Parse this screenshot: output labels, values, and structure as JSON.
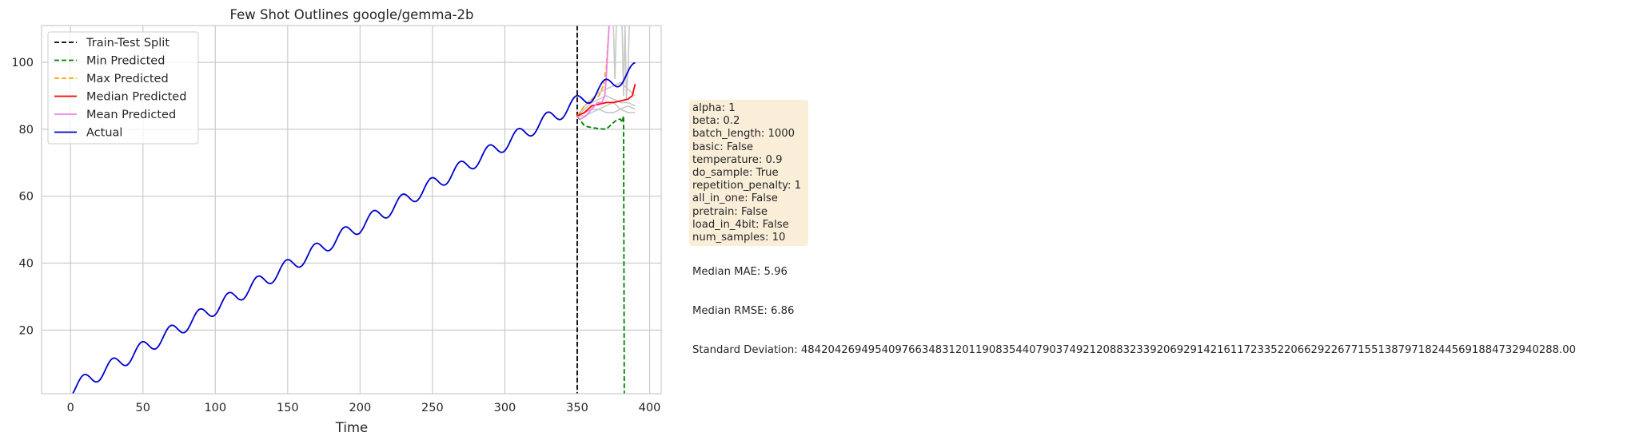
{
  "chart_data": {
    "type": "line",
    "title": "Few Shot Outlines google/gemma-2b",
    "xlabel": "Time",
    "ylabel": "",
    "xlim": [
      -20,
      408
    ],
    "ylim": [
      1,
      111
    ],
    "xticks": [
      0,
      50,
      100,
      150,
      200,
      250,
      300,
      350,
      400
    ],
    "yticks": [
      20,
      40,
      60,
      80,
      100
    ],
    "grid": true,
    "legend_position": "upper left",
    "train_test_split": 350,
    "series": [
      {
        "name": "Train-Test Split",
        "style": "dashed",
        "color": "#000000"
      },
      {
        "name": "Min Predicted",
        "style": "dashed",
        "color": "#008000",
        "x": [
          350,
          355,
          360,
          365,
          370,
          375,
          378,
          380,
          381,
          382,
          382.5
        ],
        "y": [
          84,
          81,
          80.5,
          80.2,
          80,
          82,
          83,
          83,
          82,
          84,
          1
        ]
      },
      {
        "name": "Max Predicted",
        "style": "dashed",
        "color": "#ffa500",
        "x": [
          350,
          355,
          360,
          365,
          368,
          370,
          372
        ],
        "y": [
          84,
          87,
          89,
          90,
          93,
          98,
          111
        ]
      },
      {
        "name": "Median Predicted",
        "style": "solid",
        "color": "#ff0000",
        "x": [
          350,
          355,
          360,
          365,
          370,
          375,
          380,
          385,
          388,
          390
        ],
        "y": [
          84,
          85,
          87,
          87.5,
          88,
          88,
          88.5,
          89,
          90,
          93.5
        ]
      },
      {
        "name": "Mean Predicted",
        "style": "solid",
        "color": "#ee82ee",
        "x": [
          350,
          352,
          356,
          360,
          364,
          367,
          369,
          370,
          371,
          372
        ],
        "y": [
          84,
          83,
          84,
          86,
          88,
          88,
          90,
          95,
          103,
          111
        ]
      },
      {
        "name": "Actual",
        "style": "solid",
        "color": "#0000cd",
        "equation": "y = 0.245*x + 2.2 + 2.2*sin(2*pi*(x-4)/20)",
        "x_range": [
          0,
          390
        ]
      }
    ],
    "sample_predictions": [
      {
        "x": [
          350,
          355,
          360,
          365,
          370,
          375,
          380,
          385,
          390
        ],
        "y": [
          84,
          86,
          88,
          89,
          90,
          89,
          88,
          88,
          87
        ]
      },
      {
        "x": [
          350,
          355,
          360,
          365,
          370,
          375,
          380,
          385,
          390
        ],
        "y": [
          84,
          85,
          86,
          86,
          85,
          85,
          86,
          87,
          86
        ]
      },
      {
        "x": [
          350,
          355,
          360,
          365,
          370,
          375,
          380,
          385,
          390
        ],
        "y": [
          84,
          87,
          89,
          91,
          92,
          93,
          94,
          92,
          90
        ]
      },
      {
        "x": [
          350,
          355,
          360,
          365,
          370,
          375,
          380,
          385,
          390
        ],
        "y": [
          84,
          84,
          85,
          86,
          87,
          88,
          86,
          85,
          85
        ]
      },
      {
        "x": [
          375,
          376,
          377
        ],
        "y": [
          111,
          95,
          111
        ]
      },
      {
        "x": [
          381,
          382,
          383
        ],
        "y": [
          111,
          90,
          111
        ]
      },
      {
        "x": [
          383,
          384,
          385,
          386
        ],
        "y": [
          111,
          89,
          97,
          111
        ]
      }
    ]
  },
  "legend": [
    {
      "label": "Train-Test Split",
      "color": "#000000",
      "dashed": true
    },
    {
      "label": "Min Predicted",
      "color": "#008000",
      "dashed": true
    },
    {
      "label": "Max Predicted",
      "color": "#ffa500",
      "dashed": true
    },
    {
      "label": "Median Predicted",
      "color": "#ff0000",
      "dashed": false
    },
    {
      "label": "Mean Predicted",
      "color": "#ee82ee",
      "dashed": false
    },
    {
      "label": "Actual",
      "color": "#0000cd",
      "dashed": false
    }
  ],
  "info_box": {
    "lines": [
      "alpha: 1",
      "beta: 0.2",
      "batch_length: 1000",
      "basic: False",
      "temperature: 0.9",
      "do_sample: True",
      "repetition_penalty: 1",
      "all_in_one: False",
      "pretrain: False",
      "load_in_4bit: False",
      "num_samples: 10"
    ]
  },
  "metrics": {
    "median_mae": "Median MAE: 5.96",
    "median_rmse": "Median RMSE: 6.86",
    "std_dev": "Standard Deviation: 484204269495409766348312011908354407903749212088323392069291421611723352206629226771551387971824456918847329402​88.00"
  }
}
